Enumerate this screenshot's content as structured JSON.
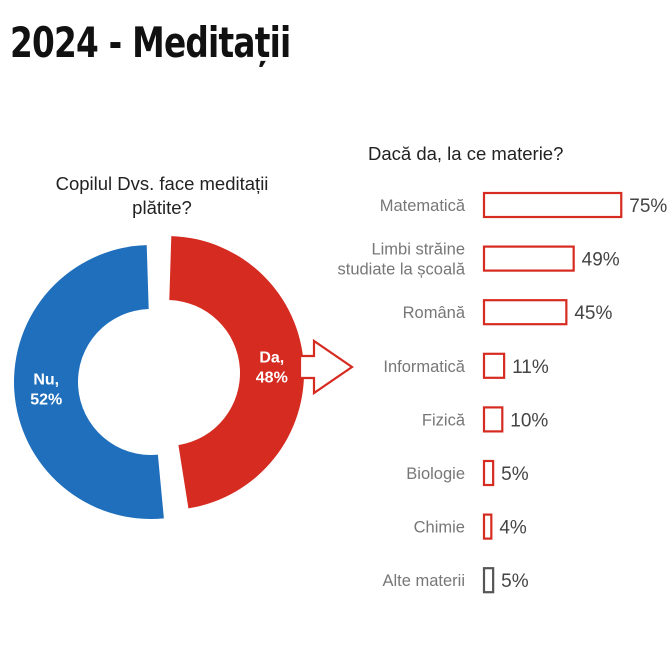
{
  "title": "2024 - Meditații",
  "donut": {
    "question_line1": "Copilul Dvs. face meditații",
    "question_line2": "plătite?",
    "slices": [
      {
        "label": "Da,",
        "pct": "48%",
        "value": 48,
        "color": "#d62b20"
      },
      {
        "label": "Nu,",
        "pct": "52%",
        "value": 52,
        "color": "#1f6fbd"
      }
    ]
  },
  "chart_data": {
    "type": "bar",
    "title": "Dacă da, la ce materie?",
    "categories": [
      [
        "Matematică"
      ],
      [
        "Limbi străine",
        "studiate la școală"
      ],
      [
        "Română"
      ],
      [
        "Informatică"
      ],
      [
        "Fizică"
      ],
      [
        "Biologie"
      ],
      [
        "Chimie"
      ],
      [
        "Alte materii"
      ]
    ],
    "values": [
      75,
      49,
      45,
      11,
      10,
      5,
      4,
      5
    ],
    "value_labels": [
      "75%",
      "49%",
      "45%",
      "11%",
      "10%",
      "5%",
      "4%",
      "5%"
    ],
    "colors": [
      "#d62b20",
      "#d62b20",
      "#d62b20",
      "#d62b20",
      "#d62b20",
      "#d62b20",
      "#d62b20",
      "#555555"
    ],
    "orientation": "horizontal"
  }
}
